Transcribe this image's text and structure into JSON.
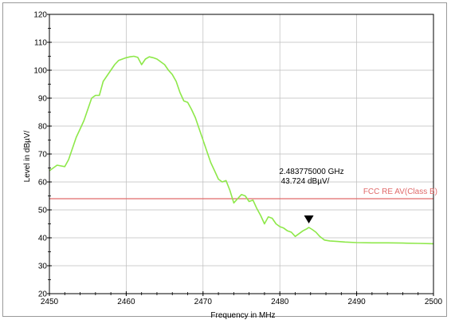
{
  "chart_data": {
    "type": "line",
    "xlabel": "Frequency in MHz",
    "ylabel": "Level in dBµV/",
    "xlim": [
      2450,
      2500
    ],
    "ylim": [
      20,
      120
    ],
    "x_ticks": [
      2450,
      2460,
      2470,
      2480,
      2490,
      2500
    ],
    "y_ticks": [
      20,
      30,
      40,
      50,
      60,
      70,
      80,
      90,
      100,
      110,
      120
    ],
    "grid": true,
    "limit_line": {
      "label": "FCC RE AV(Class B)",
      "value": 54,
      "color": "#e06a6a"
    },
    "marker": {
      "x": 2483.775,
      "y": 43.724,
      "freq_label": "2.483775000 GHz",
      "level_label": "43.724 dBµV/"
    },
    "series": [
      {
        "color": "#8ee84a",
        "points": [
          [
            2450,
            64
          ],
          [
            2450.5,
            65
          ],
          [
            2451,
            66
          ],
          [
            2452,
            65.5
          ],
          [
            2452.5,
            68
          ],
          [
            2453,
            72
          ],
          [
            2453.5,
            76
          ],
          [
            2454,
            79
          ],
          [
            2454.5,
            82
          ],
          [
            2455,
            86
          ],
          [
            2455.5,
            90
          ],
          [
            2456,
            91
          ],
          [
            2456.5,
            91
          ],
          [
            2457,
            96
          ],
          [
            2457.5,
            98
          ],
          [
            2458,
            100
          ],
          [
            2458.5,
            102
          ],
          [
            2459,
            103.5
          ],
          [
            2459.5,
            104
          ],
          [
            2460,
            104.5
          ],
          [
            2460.5,
            104.8
          ],
          [
            2461,
            105
          ],
          [
            2461.5,
            104.6
          ],
          [
            2462,
            102
          ],
          [
            2462.5,
            104
          ],
          [
            2463,
            104.8
          ],
          [
            2463.5,
            104.5
          ],
          [
            2464,
            104
          ],
          [
            2464.5,
            103
          ],
          [
            2465,
            102
          ],
          [
            2465.5,
            100
          ],
          [
            2466,
            98.5
          ],
          [
            2466.5,
            96
          ],
          [
            2467,
            92
          ],
          [
            2467.5,
            89
          ],
          [
            2468,
            88.5
          ],
          [
            2468.5,
            86
          ],
          [
            2469,
            83
          ],
          [
            2469.5,
            79
          ],
          [
            2470,
            75
          ],
          [
            2470.5,
            71
          ],
          [
            2471,
            67
          ],
          [
            2471.5,
            64
          ],
          [
            2472,
            61
          ],
          [
            2472.5,
            60
          ],
          [
            2473,
            60.5
          ],
          [
            2473.5,
            57
          ],
          [
            2474,
            52.5
          ],
          [
            2474.5,
            54
          ],
          [
            2475,
            55.5
          ],
          [
            2475.5,
            55
          ],
          [
            2476,
            53
          ],
          [
            2476.5,
            53.5
          ],
          [
            2477,
            50.5
          ],
          [
            2477.5,
            48
          ],
          [
            2478,
            45
          ],
          [
            2478.5,
            47.5
          ],
          [
            2479,
            47
          ],
          [
            2479.5,
            45
          ],
          [
            2480,
            44
          ],
          [
            2480.5,
            43.5
          ],
          [
            2481,
            42.5
          ],
          [
            2481.5,
            42
          ],
          [
            2482,
            40.5
          ],
          [
            2482.5,
            41.5
          ],
          [
            2483,
            42.5
          ],
          [
            2483.5,
            43.2
          ],
          [
            2483.775,
            43.724
          ],
          [
            2484.2,
            43
          ],
          [
            2484.7,
            42
          ],
          [
            2485.2,
            40.5
          ],
          [
            2485.8,
            39.2
          ],
          [
            2486.5,
            38.9
          ],
          [
            2487.5,
            38.7
          ],
          [
            2488.5,
            38.5
          ],
          [
            2490,
            38.3
          ],
          [
            2492,
            38.2
          ],
          [
            2494,
            38.2
          ],
          [
            2496,
            38.1
          ],
          [
            2498,
            38
          ],
          [
            2500,
            37.9
          ]
        ]
      }
    ]
  }
}
